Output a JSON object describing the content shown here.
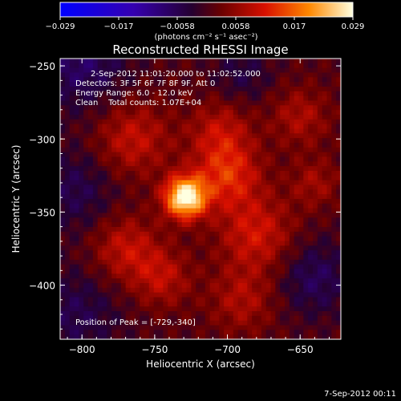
{
  "chart_data": {
    "type": "heatmap",
    "title": "Reconstructed RHESSI Image",
    "xlabel": "Heliocentric X (arcsec)",
    "ylabel": "Heliocentric Y (arcsec)",
    "xlim": [
      -815,
      -622
    ],
    "ylim": [
      -437,
      -245
    ],
    "x_ticks": [
      -800,
      -750,
      -700,
      -650
    ],
    "y_ticks": [
      -250,
      -300,
      -350,
      -400
    ],
    "colorbar": {
      "ticks": [
        "-0.029",
        "-0.017",
        "-0.0058",
        "0.0058",
        "0.017",
        "0.029"
      ],
      "range": [
        -0.029,
        0.029
      ],
      "unit_label": "(photons cm⁻² s⁻¹ asec⁻²)"
    },
    "annotations": {
      "time": "2-Sep-2012 11:01:20.000 to 11:02:52.000",
      "detectors": "Detectors: 3F 5F 6F 7F 8F 9F, Att 0",
      "energy": "Energy Range: 6.0 - 12.0 keV",
      "clean_counts": "Clean    Total counts: 1.07E+04",
      "peak": "Position of Peak = [-729,-340]"
    },
    "peak": {
      "x": -729,
      "y": -340,
      "value": 0.029
    },
    "sources": [
      {
        "x": -729,
        "y": -340,
        "amp": 0.029,
        "sigma": 10
      },
      {
        "x": -700,
        "y": -325,
        "amp": 0.012,
        "sigma": 16
      },
      {
        "x": -765,
        "y": -300,
        "amp": 0.009,
        "sigma": 18
      },
      {
        "x": -680,
        "y": -365,
        "amp": 0.01,
        "sigma": 18
      },
      {
        "x": -770,
        "y": -375,
        "amp": 0.009,
        "sigma": 16
      },
      {
        "x": -705,
        "y": -295,
        "amp": 0.008,
        "sigma": 15
      },
      {
        "x": -650,
        "y": -285,
        "amp": 0.007,
        "sigma": 14
      },
      {
        "x": -745,
        "y": -395,
        "amp": 0.008,
        "sigma": 14
      },
      {
        "x": -690,
        "y": -410,
        "amp": 0.007,
        "sigma": 16
      },
      {
        "x": -640,
        "y": -330,
        "amp": 0.006,
        "sigma": 12
      }
    ],
    "negative_regions": [
      {
        "x": -800,
        "y": -250,
        "amp": -0.008,
        "sigma": 22
      },
      {
        "x": -805,
        "y": -335,
        "amp": -0.006,
        "sigma": 20
      },
      {
        "x": -805,
        "y": -420,
        "amp": -0.006,
        "sigma": 22
      },
      {
        "x": -640,
        "y": -395,
        "amp": -0.007,
        "sigma": 18
      },
      {
        "x": -690,
        "y": -255,
        "amp": -0.005,
        "sigma": 14
      }
    ],
    "grid": false
  },
  "footer": {
    "timestamp": "7-Sep-2012 00:11"
  }
}
